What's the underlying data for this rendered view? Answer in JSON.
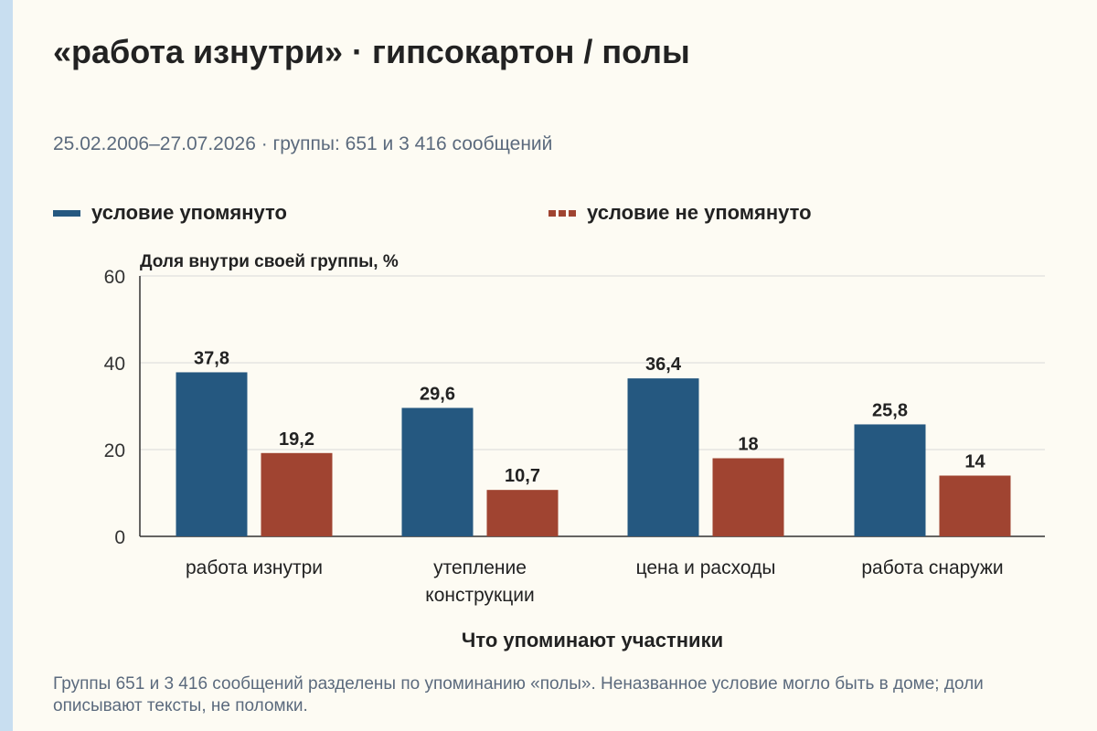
{
  "title": "«работа изнутри» · гипсокартон / полы",
  "subtitle": "25.02.2006–27.07.2026 · группы: 651 и 3 416 сообщений",
  "footnote": "Группы 651 и 3 416 сообщений разделены по упоминанию «полы». Неназванное условие могло быть в доме; доли описывают тексты, не поломки.",
  "colors": {
    "series_1": "#255880",
    "series_2": "#a04431",
    "grid": "#d9d9d9",
    "axis": "#333333"
  },
  "chart_data": {
    "type": "bar",
    "ylabel": "Доля внутри своей группы, %",
    "xlabel": "Что упоминают участники",
    "ylim": [
      0,
      60
    ],
    "yticks": [
      "0",
      "20",
      "40",
      "60"
    ],
    "categories": [
      [
        "работа изнутри"
      ],
      [
        "утепление",
        "конструкции"
      ],
      [
        "цена и расходы"
      ],
      [
        "работа снаружи"
      ]
    ],
    "series": [
      {
        "name": "условие упомянуто",
        "values": [
          37.8,
          29.6,
          36.4,
          25.8
        ],
        "labels": [
          "37,8",
          "29,6",
          "36,4",
          "25,8"
        ]
      },
      {
        "name": "условие не упомянуто",
        "values": [
          19.2,
          10.7,
          18,
          14
        ],
        "labels": [
          "19,2",
          "10,7",
          "18",
          "14"
        ]
      }
    ],
    "grid": true,
    "legend_position": "top"
  }
}
